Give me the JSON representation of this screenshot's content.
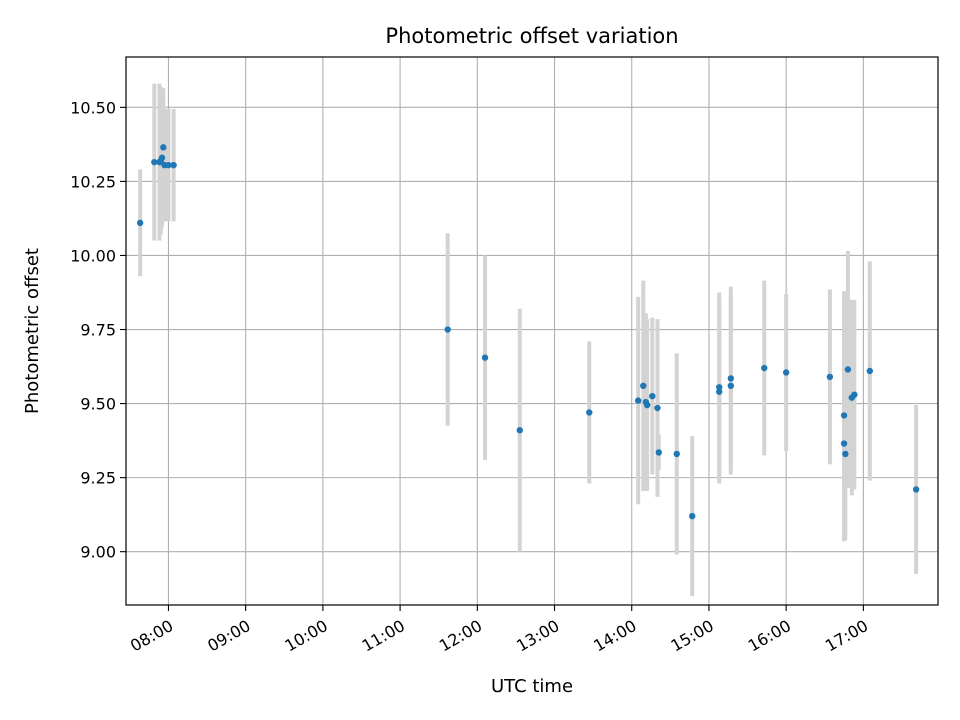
{
  "chart_data": {
    "type": "scatter",
    "title": "Photometric offset variation",
    "xlabel": "UTC time",
    "ylabel": "Photometric offset",
    "grid": true,
    "xlim": [
      "07:27",
      "17:58"
    ],
    "ylim": [
      8.82,
      10.67
    ],
    "x_ticks": [
      "08:00",
      "09:00",
      "10:00",
      "11:00",
      "12:00",
      "13:00",
      "14:00",
      "15:00",
      "16:00",
      "17:00"
    ],
    "y_ticks": [
      "9.00",
      "9.25",
      "9.50",
      "9.75",
      "10.00",
      "10.25",
      "10.50"
    ],
    "colors": {
      "points": "#1f77b4",
      "errorbars": "#d3d3d3",
      "grid": "#b0b0b0",
      "axes": "#000000"
    },
    "series": [
      {
        "x": [
          "07:38",
          "07:49",
          "07:53",
          "07:54",
          "07:55",
          "07:56",
          "07:57",
          "08:00",
          "08:04",
          "11:37",
          "12:06",
          "12:33",
          "13:27",
          "14:05",
          "14:09",
          "14:11",
          "14:12",
          "14:16",
          "14:20",
          "14:21",
          "14:35",
          "14:47",
          "15:08",
          "15:08",
          "15:17",
          "15:17",
          "15:43",
          "16:00",
          "16:34",
          "16:45",
          "16:45",
          "16:46",
          "16:48",
          "16:51",
          "16:53",
          "17:05",
          "17:41"
        ],
        "y": [
          10.11,
          10.315,
          10.315,
          10.32,
          10.33,
          10.365,
          10.305,
          10.305,
          10.305,
          9.75,
          9.655,
          9.41,
          9.47,
          9.51,
          9.56,
          9.505,
          9.495,
          9.525,
          9.485,
          9.335,
          9.33,
          9.12,
          9.555,
          9.54,
          9.56,
          9.585,
          9.62,
          9.605,
          9.59,
          9.46,
          9.365,
          9.33,
          9.615,
          9.52,
          9.53,
          9.61,
          9.21
        ],
        "yerr": [
          0.18,
          0.265,
          0.265,
          0.25,
          0.235,
          0.2,
          0.19,
          0.19,
          0.19,
          0.325,
          0.345,
          0.41,
          0.24,
          0.35,
          0.355,
          0.3,
          0.29,
          0.265,
          0.3,
          0.06,
          0.34,
          0.27,
          0.32,
          0.31,
          0.3,
          0.31,
          0.295,
          0.265,
          0.295,
          0.42,
          0.33,
          0.29,
          0.4,
          0.33,
          0.32,
          0.37,
          0.285
        ]
      }
    ]
  }
}
